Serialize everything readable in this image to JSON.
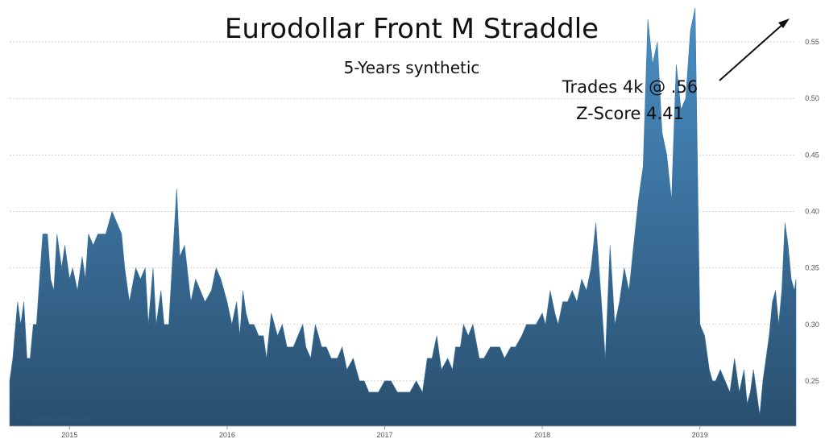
{
  "chart_data": {
    "type": "area",
    "title": "Eurodollar Front M Straddle",
    "subtitle": "5-Years synthetic",
    "watermark": "PricingMonkey.com",
    "annotation": {
      "lines": [
        "Trades 4k @ .56",
        "Z-Score 4.41"
      ]
    },
    "ylim": [
      0.21,
      0.58
    ],
    "xlim": [
      2014.62,
      2019.61
    ],
    "yticks": [
      0.25,
      0.3,
      0.35,
      0.4,
      0.45,
      0.5,
      0.55
    ],
    "ytick_labels": [
      "0.25",
      "0.30",
      "0.35",
      "0.40",
      "0.45",
      "0.50",
      "0.55"
    ],
    "xticks": [
      2015,
      2016,
      2017,
      2018,
      2019
    ],
    "xtick_labels": [
      "2015",
      "2016",
      "2017",
      "2018",
      "2019"
    ],
    "grid": "horizontal dashed",
    "colors": {
      "fill_top": "#4a8fc6",
      "fill_bottom": "#2a4f6e",
      "grid": "#c8c8c8"
    },
    "series": [
      {
        "x": [
          2014.62,
          2014.64,
          2014.67,
          2014.69,
          2014.71,
          2014.73,
          2014.75,
          2014.77,
          2014.79,
          2014.8,
          2014.83,
          2014.86,
          2014.88,
          2014.9,
          2014.92,
          2014.95,
          2014.97,
          2015.0,
          2015.02,
          2015.05,
          2015.08,
          2015.1,
          2015.12,
          2015.15,
          2015.18,
          2015.2,
          2015.23,
          2015.27,
          2015.3,
          2015.33,
          2015.35,
          2015.38,
          2015.42,
          2015.45,
          2015.48,
          2015.5,
          2015.53,
          2015.55,
          2015.58,
          2015.6,
          2015.63,
          2015.65,
          2015.68,
          2015.7,
          2015.73,
          2015.77,
          2015.8,
          2015.83,
          2015.86,
          2015.9,
          2015.93,
          2015.96,
          2016.0,
          2016.03,
          2016.06,
          2016.08,
          2016.1,
          2016.12,
          2016.14,
          2016.17,
          2016.2,
          2016.23,
          2016.25,
          2016.28,
          2016.32,
          2016.35,
          2016.38,
          2016.42,
          2016.45,
          2016.48,
          2016.5,
          2016.53,
          2016.56,
          2016.6,
          2016.63,
          2016.66,
          2016.7,
          2016.73,
          2016.76,
          2016.8,
          2016.84,
          2016.87,
          2016.9,
          2016.93,
          2016.96,
          2017.0,
          2017.04,
          2017.08,
          2017.12,
          2017.16,
          2017.2,
          2017.24,
          2017.27,
          2017.3,
          2017.33,
          2017.36,
          2017.4,
          2017.43,
          2017.45,
          2017.48,
          2017.5,
          2017.53,
          2017.56,
          2017.6,
          2017.63,
          2017.67,
          2017.7,
          2017.73,
          2017.76,
          2017.8,
          2017.83,
          2017.87,
          2017.9,
          2017.93,
          2017.96,
          2018.0,
          2018.02,
          2018.05,
          2018.08,
          2018.1,
          2018.13,
          2018.16,
          2018.19,
          2018.22,
          2018.25,
          2018.28,
          2018.31,
          2018.34,
          2018.37,
          2018.4,
          2018.43,
          2018.46,
          2018.49,
          2018.52,
          2018.55,
          2018.58,
          2018.61,
          2018.64,
          2018.67,
          2018.7,
          2018.73,
          2018.76,
          2018.79,
          2018.82,
          2018.85,
          2018.88,
          2018.91,
          2018.94,
          2018.97,
          2019.0,
          2019.03,
          2019.06,
          2019.08,
          2019.1,
          2019.13,
          2019.16,
          2019.19,
          2019.22,
          2019.25,
          2019.28,
          2019.3,
          2019.32,
          2019.34,
          2019.36,
          2019.38,
          2019.4,
          2019.42,
          2019.44,
          2019.46,
          2019.48,
          2019.5,
          2019.52,
          2019.54,
          2019.56,
          2019.58,
          2019.6,
          2019.61
        ],
        "values": [
          0.25,
          0.27,
          0.32,
          0.3,
          0.32,
          0.27,
          0.27,
          0.3,
          0.3,
          0.32,
          0.38,
          0.38,
          0.34,
          0.33,
          0.38,
          0.35,
          0.37,
          0.34,
          0.35,
          0.33,
          0.36,
          0.34,
          0.38,
          0.37,
          0.38,
          0.38,
          0.38,
          0.4,
          0.39,
          0.38,
          0.35,
          0.32,
          0.35,
          0.34,
          0.35,
          0.3,
          0.35,
          0.3,
          0.33,
          0.3,
          0.3,
          0.35,
          0.42,
          0.36,
          0.37,
          0.32,
          0.34,
          0.33,
          0.32,
          0.33,
          0.35,
          0.34,
          0.32,
          0.3,
          0.32,
          0.29,
          0.33,
          0.31,
          0.3,
          0.3,
          0.29,
          0.29,
          0.27,
          0.31,
          0.29,
          0.3,
          0.28,
          0.28,
          0.29,
          0.3,
          0.28,
          0.27,
          0.3,
          0.28,
          0.28,
          0.27,
          0.27,
          0.28,
          0.26,
          0.27,
          0.25,
          0.25,
          0.24,
          0.24,
          0.24,
          0.25,
          0.25,
          0.24,
          0.24,
          0.24,
          0.25,
          0.24,
          0.27,
          0.27,
          0.29,
          0.26,
          0.27,
          0.26,
          0.28,
          0.28,
          0.3,
          0.29,
          0.3,
          0.27,
          0.27,
          0.28,
          0.28,
          0.28,
          0.27,
          0.28,
          0.28,
          0.29,
          0.3,
          0.3,
          0.3,
          0.31,
          0.3,
          0.33,
          0.31,
          0.3,
          0.32,
          0.32,
          0.33,
          0.32,
          0.34,
          0.33,
          0.35,
          0.39,
          0.33,
          0.27,
          0.37,
          0.3,
          0.32,
          0.35,
          0.33,
          0.37,
          0.41,
          0.44,
          0.57,
          0.53,
          0.55,
          0.47,
          0.45,
          0.41,
          0.53,
          0.49,
          0.5,
          0.56,
          0.58,
          0.3,
          0.29,
          0.26,
          0.25,
          0.25,
          0.26,
          0.25,
          0.24,
          0.27,
          0.24,
          0.26,
          0.23,
          0.24,
          0.26,
          0.24,
          0.22,
          0.25,
          0.27,
          0.29,
          0.32,
          0.33,
          0.3,
          0.33,
          0.39,
          0.37,
          0.34,
          0.33,
          0.34
        ]
      }
    ]
  }
}
